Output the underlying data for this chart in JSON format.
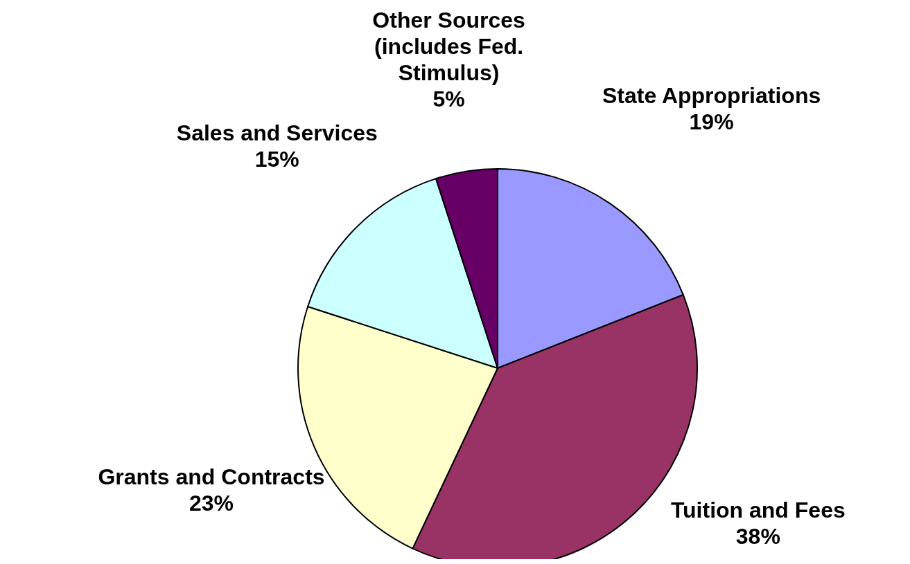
{
  "chart_data": {
    "type": "pie",
    "categories": [
      "State Appropriations",
      "Tuition and Fees",
      "Grants and Contracts",
      "Sales and Services",
      "Other Sources (includes Fed. Stimulus)"
    ],
    "values": [
      19,
      38,
      23,
      15,
      5
    ],
    "value_labels": [
      "19%",
      "38%",
      "23%",
      "15%",
      "5%"
    ],
    "colors": [
      "#9999ff",
      "#993366",
      "#ffffcc",
      "#ccffff",
      "#660066"
    ]
  }
}
